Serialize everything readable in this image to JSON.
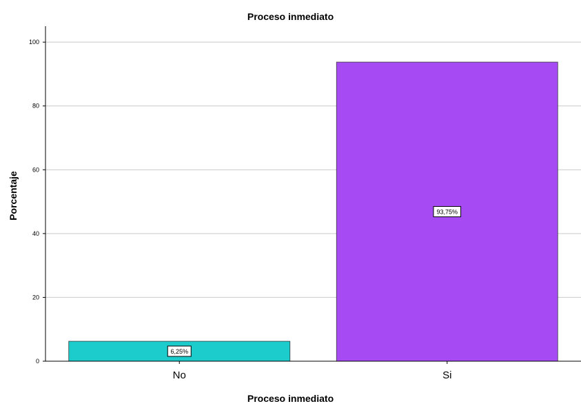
{
  "chart_data": {
    "type": "bar",
    "title": "Proceso inmediato",
    "xlabel": "Proceso inmediato",
    "ylabel": "Porcentaje",
    "categories": [
      "No",
      "Si"
    ],
    "values": [
      6.25,
      93.75
    ],
    "data_labels": [
      "6,25%",
      "93,75%"
    ],
    "colors": [
      "#1ccccc",
      "#a64bf4"
    ],
    "ylim": [
      0,
      105
    ],
    "yticks": [
      0,
      20,
      40,
      60,
      80,
      100
    ],
    "grid": true,
    "legend": "none"
  }
}
